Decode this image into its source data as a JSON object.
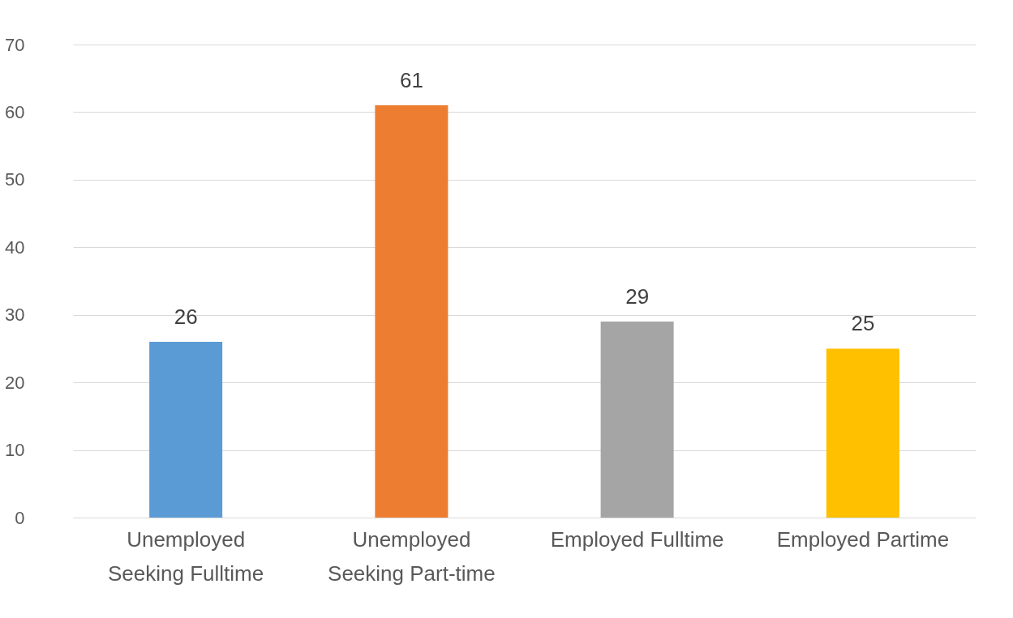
{
  "chart_data": {
    "type": "bar",
    "categories": [
      "Unemployed\nSeeking Fulltime",
      "Unemployed\nSeeking Part-time",
      "Employed Fulltime",
      "Employed Partime"
    ],
    "values": [
      26,
      61,
      29,
      25
    ],
    "colors": [
      "#5b9bd5",
      "#ed7d31",
      "#a5a5a5",
      "#ffc000"
    ],
    "ylim": [
      0,
      70
    ],
    "yticks": [
      0,
      10,
      20,
      30,
      40,
      50,
      60,
      70
    ],
    "grid": "y",
    "data_labels": true
  }
}
